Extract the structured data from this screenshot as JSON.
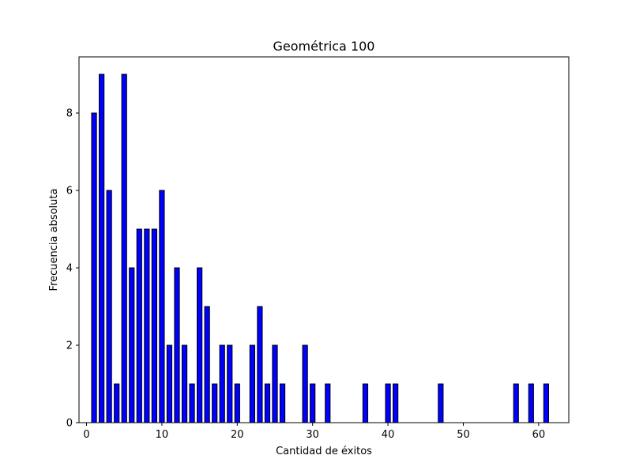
{
  "chart_data": {
    "type": "bar",
    "title": "Geométrica 100",
    "xlabel": "Cantidad de éxitos",
    "ylabel": "Frecuencia absoluta",
    "xlim": [
      -1,
      64
    ],
    "ylim": [
      0,
      9.45
    ],
    "xticks": [
      0,
      10,
      20,
      30,
      40,
      50,
      60
    ],
    "yticks": [
      0,
      2,
      4,
      6,
      8
    ],
    "bar_width": 0.65,
    "bar_color": "#0000ff",
    "edge_color": "#000000",
    "grid": false,
    "x": [
      1,
      2,
      3,
      4,
      5,
      6,
      7,
      8,
      9,
      10,
      11,
      12,
      13,
      14,
      15,
      16,
      17,
      18,
      19,
      20,
      22,
      23,
      24,
      25,
      26,
      29,
      30,
      32,
      37,
      40,
      41,
      47,
      57,
      59,
      61
    ],
    "values": [
      8,
      9,
      6,
      1,
      9,
      4,
      5,
      5,
      5,
      6,
      2,
      4,
      2,
      1,
      4,
      3,
      1,
      2,
      2,
      1,
      2,
      3,
      1,
      2,
      1,
      2,
      1,
      1,
      1,
      1,
      1,
      1,
      1,
      1,
      1
    ]
  }
}
